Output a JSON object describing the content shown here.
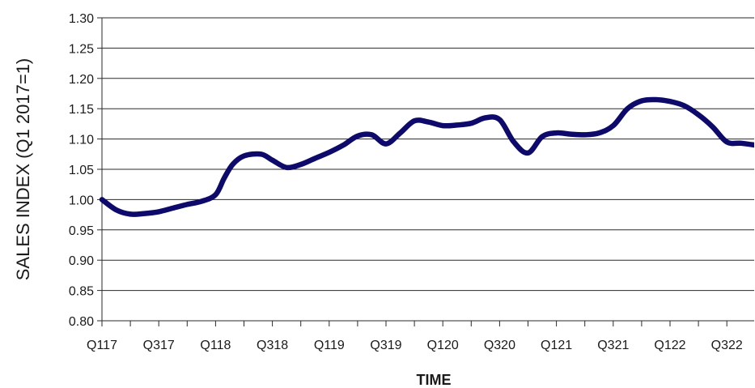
{
  "chart_data": {
    "type": "line",
    "title": "",
    "xlabel": "TIME",
    "ylabel": "SALES INDEX (Q1 2017=1)",
    "ylim": [
      0.8,
      1.3
    ],
    "yticks": [
      "0.80",
      "0.85",
      "0.90",
      "0.95",
      "1.00",
      "1.05",
      "1.10",
      "1.15",
      "1.20",
      "1.25",
      "1.30"
    ],
    "grid": "horizontal",
    "categories": [
      "Q117",
      "Q217",
      "Q317",
      "Q417",
      "Q118",
      "Q218",
      "Q318",
      "Q418",
      "Q119",
      "Q219",
      "Q319",
      "Q419",
      "Q120",
      "Q220",
      "Q320",
      "Q420",
      "Q121",
      "Q221",
      "Q321",
      "Q421",
      "Q122",
      "Q222",
      "Q322",
      "Q422"
    ],
    "category_labels_shown": [
      "Q117",
      "Q317",
      "Q118",
      "Q318",
      "Q119",
      "Q319",
      "Q120",
      "Q320",
      "Q121",
      "Q321",
      "Q122",
      "Q322"
    ],
    "series": [
      {
        "name": "",
        "color": "#0d0a6b",
        "x": [
          0,
          0.5,
          1,
          1.5,
          2,
          2.5,
          3,
          3.5,
          4,
          4.3,
          4.6,
          5,
          5.6,
          6,
          6.5,
          7,
          7.5,
          8,
          8.5,
          9,
          9.5,
          10,
          10.5,
          11,
          11.5,
          12,
          12.5,
          13,
          13.5,
          14,
          14.5,
          15,
          15.5,
          16,
          16.5,
          17,
          17.5,
          18,
          18.5,
          19,
          19.5,
          20,
          20.5,
          21,
          21.5,
          22,
          22.5,
          23
        ],
        "values": [
          1.0,
          0.983,
          0.976,
          0.977,
          0.98,
          0.986,
          0.992,
          0.997,
          1.008,
          1.035,
          1.058,
          1.072,
          1.075,
          1.065,
          1.053,
          1.058,
          1.068,
          1.078,
          1.09,
          1.105,
          1.107,
          1.092,
          1.11,
          1.13,
          1.128,
          1.122,
          1.123,
          1.126,
          1.135,
          1.132,
          1.095,
          1.077,
          1.104,
          1.11,
          1.108,
          1.107,
          1.11,
          1.122,
          1.15,
          1.163,
          1.165,
          1.162,
          1.155,
          1.14,
          1.12,
          1.095,
          1.093,
          1.09
        ]
      }
    ]
  }
}
